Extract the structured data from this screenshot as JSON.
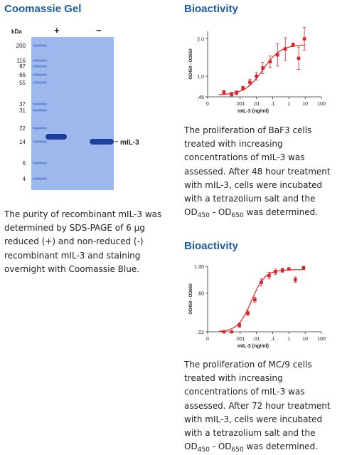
{
  "gel": {
    "title": "Coomassie Gel",
    "kda_label": "kDa",
    "lane_plus": "+",
    "lane_minus": "−",
    "band_label": "mIL-3",
    "markers": [
      "200",
      "116",
      "97",
      "66",
      "55",
      "37",
      "31",
      "22",
      "14",
      "6",
      "4"
    ],
    "lane_color": "#6f8fd8",
    "band_color": "#1f3f9c",
    "description": "The purity of recombinant mIL-3 was determined by SDS-PAGE of 6 μg reduced (+) and non-reduced (-) recombinant mIL-3 and staining overnight with Coomassie Blue."
  },
  "bioactivity_1": {
    "title": "Bioactivity",
    "desc_main": "The proliferation of BaF3 cells treated with increasing concentrations of mIL-3 was assessed. After 48 hour treatment with mIL-3, cells were incubated with a tetrazolium salt and the",
    "od1": "OD",
    "od1_sub": "450",
    "sep": " - ",
    "od2": "OD",
    "od2_sub": "650",
    "desc_end": " was determined."
  },
  "bioactivity_2": {
    "title": "Bioactivity",
    "desc_main": "The proliferation of MC/9 cells treated with increasing concentrations of mIL-3 was assessed. After 72 hour treatment with mIL-3, cells were incubated with a tetrazolium salt and the",
    "od1": "OD",
    "od1_sub": "450",
    "sep": " - ",
    "od2": "OD",
    "od2_sub": "650",
    "desc_end": " was determined."
  },
  "chart_data": [
    {
      "type": "scatter",
      "color": "#d8232a",
      "xlabel": "mIL-3 (ng/ml)",
      "ylabel": "OD450 - OD650",
      "x_ticks": [
        "0",
        ".001",
        ".01",
        ".1",
        "1",
        "10",
        "100"
      ],
      "y_ticks": [
        "2.0",
        "1.0",
        ".45"
      ],
      "ylim": [
        0.45,
        2.2
      ],
      "x": [
        0.0001,
        0.0003,
        0.0006,
        0.0015,
        0.004,
        0.01,
        0.025,
        0.07,
        0.2,
        0.6,
        1.8,
        4,
        9
      ],
      "y": [
        0.57,
        0.52,
        0.56,
        0.68,
        0.84,
        1.0,
        1.22,
        1.39,
        1.57,
        1.73,
        1.84,
        1.48,
        2.0
      ],
      "err": [
        0.05,
        0.05,
        0.05,
        0.05,
        0.08,
        0.1,
        0.15,
        0.15,
        0.3,
        0.3,
        0.05,
        0.3,
        0.3
      ]
    },
    {
      "type": "scatter",
      "color": "#d8232a",
      "xlabel": "mIL-3 (ng/ml)",
      "ylabel": "OD450 - OD650",
      "x_ticks": [
        "0",
        ".001",
        ".01",
        ".1",
        "1",
        "10",
        "100"
      ],
      "y_ticks": [
        "1.00",
        ".60",
        ".02"
      ],
      "ylim": [
        0.02,
        1.0
      ],
      "x": [
        0.0001,
        0.0003,
        0.0009,
        0.003,
        0.008,
        0.02,
        0.06,
        0.15,
        0.4,
        1,
        2.5,
        8
      ],
      "y": [
        0.02,
        0.02,
        0.12,
        0.3,
        0.5,
        0.76,
        0.86,
        0.92,
        0.94,
        0.96,
        0.8,
        0.98
      ],
      "err": [
        0.01,
        0.01,
        0.03,
        0.04,
        0.04,
        0.05,
        0.05,
        0.04,
        0.03,
        0.02,
        0.04,
        0.02
      ]
    }
  ]
}
